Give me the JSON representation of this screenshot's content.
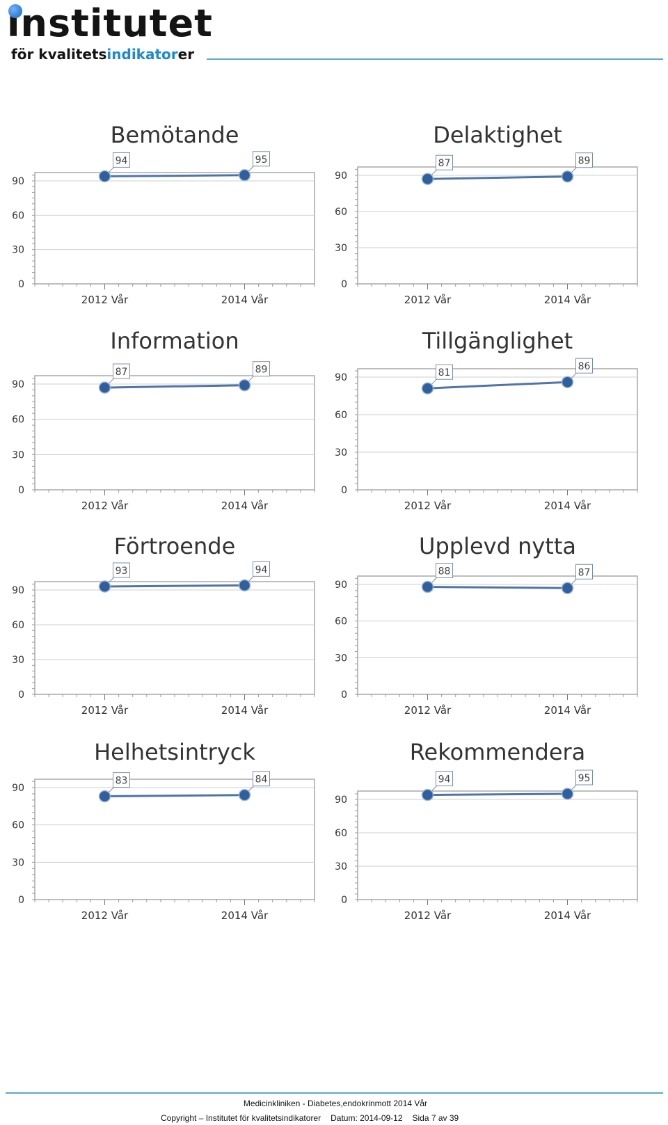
{
  "header": {
    "logo_main": "institutet",
    "logo_sub_prefix": "för kvalitets",
    "logo_sub_highlight": "indikator",
    "logo_sub_suffix": "er"
  },
  "colors": {
    "line": "#4f74a8",
    "marker": "#2f5f9d",
    "accent_rule": "#5aa9d0",
    "logo_highlight": "#1e88d2"
  },
  "chart_data": [
    {
      "type": "line",
      "title": "Bemötande",
      "categories": [
        "2012 Vår",
        "2014 Vår"
      ],
      "series": [
        {
          "values": [
            94,
            95
          ]
        }
      ],
      "yticks": [
        0,
        30,
        60,
        90
      ],
      "ylim": [
        0,
        100
      ],
      "grid": true
    },
    {
      "type": "line",
      "title": "Delaktighet",
      "categories": [
        "2012 Vår",
        "2014 Vår"
      ],
      "series": [
        {
          "values": [
            87,
            89
          ]
        }
      ],
      "yticks": [
        0,
        30,
        60,
        90
      ],
      "ylim": [
        0,
        100
      ],
      "grid": true
    },
    {
      "type": "line",
      "title": "Information",
      "categories": [
        "2012 Vår",
        "2014 Vår"
      ],
      "series": [
        {
          "values": [
            87,
            89
          ]
        }
      ],
      "yticks": [
        0,
        30,
        60,
        90
      ],
      "ylim": [
        0,
        100
      ],
      "grid": true
    },
    {
      "type": "line",
      "title": "Tillgänglighet",
      "categories": [
        "2012 Vår",
        "2014 Vår"
      ],
      "series": [
        {
          "values": [
            81,
            86
          ]
        }
      ],
      "yticks": [
        0,
        30,
        60,
        90
      ],
      "ylim": [
        0,
        100
      ],
      "grid": true
    },
    {
      "type": "line",
      "title": "Förtroende",
      "categories": [
        "2012 Vår",
        "2014 Vår"
      ],
      "series": [
        {
          "values": [
            93,
            94
          ]
        }
      ],
      "yticks": [
        0,
        30,
        60,
        90
      ],
      "ylim": [
        0,
        100
      ],
      "grid": true
    },
    {
      "type": "line",
      "title": "Upplevd nytta",
      "categories": [
        "2012 Vår",
        "2014 Vår"
      ],
      "series": [
        {
          "values": [
            88,
            87
          ]
        }
      ],
      "yticks": [
        0,
        30,
        60,
        90
      ],
      "ylim": [
        0,
        100
      ],
      "grid": true
    },
    {
      "type": "line",
      "title": "Helhetsintryck",
      "categories": [
        "2012 Vår",
        "2014 Vår"
      ],
      "series": [
        {
          "values": [
            83,
            84
          ]
        }
      ],
      "yticks": [
        0,
        30,
        60,
        90
      ],
      "ylim": [
        0,
        100
      ],
      "grid": true
    },
    {
      "type": "line",
      "title": "Rekommendera",
      "categories": [
        "2012 Vår",
        "2014 Vår"
      ],
      "series": [
        {
          "values": [
            94,
            95
          ]
        }
      ],
      "yticks": [
        0,
        30,
        60,
        90
      ],
      "ylim": [
        0,
        100
      ],
      "grid": true
    }
  ],
  "footer": {
    "line1": "Medicinkliniken - Diabetes,endokrinmott 2014 Vår",
    "copyright": "Copyright – Institutet för kvalitetsindikatorer",
    "date": "Datum: 2014-09-12",
    "page": "Sida 7 av 39"
  }
}
